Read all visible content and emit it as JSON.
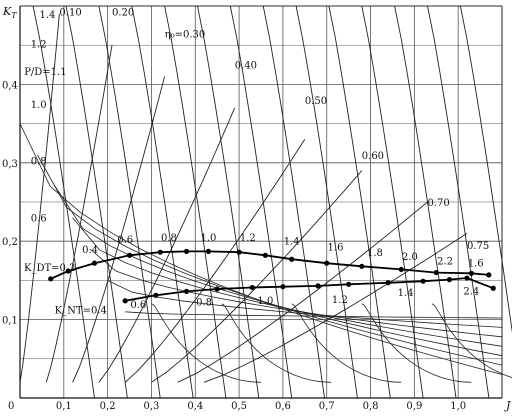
{
  "chart_data": {
    "type": "line",
    "xlabel": "J",
    "ylabel": "K_T",
    "xlim": [
      0,
      1.1
    ],
    "ylim": [
      0,
      0.5
    ],
    "grid": true,
    "x_ticks": [
      "0",
      "0,1",
      "0,2",
      "0,3",
      "0,4",
      "0,5",
      "0,6",
      "0,7",
      "0,8",
      "0,9",
      "1,0",
      "J"
    ],
    "y_ticks": [
      "0,1",
      "0,2",
      "0,3",
      "0,4"
    ],
    "efficiency_labels": [
      {
        "text": "0.10",
        "x": 0.09,
        "y": 0.488
      },
      {
        "text": "0.20",
        "x": 0.21,
        "y": 0.488
      },
      {
        "text": "η₀=0.30",
        "x": 0.33,
        "y": 0.46
      },
      {
        "text": "0.40",
        "x": 0.49,
        "y": 0.42
      },
      {
        "text": "0.50",
        "x": 0.65,
        "y": 0.375
      },
      {
        "text": "0.60",
        "x": 0.78,
        "y": 0.305
      },
      {
        "text": "0.70",
        "x": 0.93,
        "y": 0.245
      },
      {
        "text": "0.75",
        "x": 1.02,
        "y": 0.19
      }
    ],
    "pitch_labels": [
      {
        "text": "1.4",
        "x": 0.04,
        "y": 0.485
      },
      {
        "text": "1.2",
        "x": 0.02,
        "y": 0.447
      },
      {
        "text": "P/D=1.1",
        "x": 0.005,
        "y": 0.412
      },
      {
        "text": "1.0",
        "x": 0.02,
        "y": 0.37
      },
      {
        "text": "0.8",
        "x": 0.02,
        "y": 0.298
      },
      {
        "text": "0.6",
        "x": 0.02,
        "y": 0.225
      }
    ],
    "series": [
      {
        "name": "K_DT",
        "start_label": "K_DT=0.2",
        "x": [
          0.07,
          0.11,
          0.17,
          0.25,
          0.32,
          0.38,
          0.43,
          0.5,
          0.56,
          0.62,
          0.7,
          0.78,
          0.87,
          0.95,
          1.03,
          1.07
        ],
        "y": [
          0.152,
          0.162,
          0.172,
          0.182,
          0.186,
          0.187,
          0.187,
          0.186,
          0.182,
          0.177,
          0.172,
          0.168,
          0.164,
          0.16,
          0.159,
          0.157
        ],
        "point_labels": [
          {
            "text": "0.4",
            "x": 0.16,
            "y": 0.185
          },
          {
            "text": "0.6",
            "x": 0.24,
            "y": 0.198
          },
          {
            "text": "0.8",
            "x": 0.34,
            "y": 0.2
          },
          {
            "text": "1.0",
            "x": 0.43,
            "y": 0.2
          },
          {
            "text": "1.2",
            "x": 0.52,
            "y": 0.2
          },
          {
            "text": "1.4",
            "x": 0.62,
            "y": 0.196
          },
          {
            "text": "1.6",
            "x": 0.72,
            "y": 0.188
          },
          {
            "text": "1.8",
            "x": 0.81,
            "y": 0.181
          },
          {
            "text": "2.0",
            "x": 0.89,
            "y": 0.176
          },
          {
            "text": "2.2",
            "x": 0.97,
            "y": 0.17
          },
          {
            "text": "1.6",
            "x": 1.04,
            "y": 0.168
          }
        ]
      },
      {
        "name": "K_NT",
        "start_label": "K_NT=0.4",
        "x": [
          0.24,
          0.31,
          0.38,
          0.45,
          0.53,
          0.6,
          0.68,
          0.75,
          0.84,
          0.92,
          0.98,
          1.02,
          1.08
        ],
        "y": [
          0.124,
          0.131,
          0.136,
          0.139,
          0.141,
          0.142,
          0.143,
          0.145,
          0.147,
          0.149,
          0.151,
          0.153,
          0.14
        ],
        "point_labels": [
          {
            "text": "0.6",
            "x": 0.27,
            "y": 0.115
          },
          {
            "text": "0.8",
            "x": 0.42,
            "y": 0.118
          },
          {
            "text": "1.0",
            "x": 0.56,
            "y": 0.12
          },
          {
            "text": "1.2",
            "x": 0.73,
            "y": 0.121
          },
          {
            "text": "1.4",
            "x": 0.88,
            "y": 0.13
          },
          {
            "text": "2.4",
            "x": 1.03,
            "y": 0.132
          }
        ]
      }
    ]
  }
}
